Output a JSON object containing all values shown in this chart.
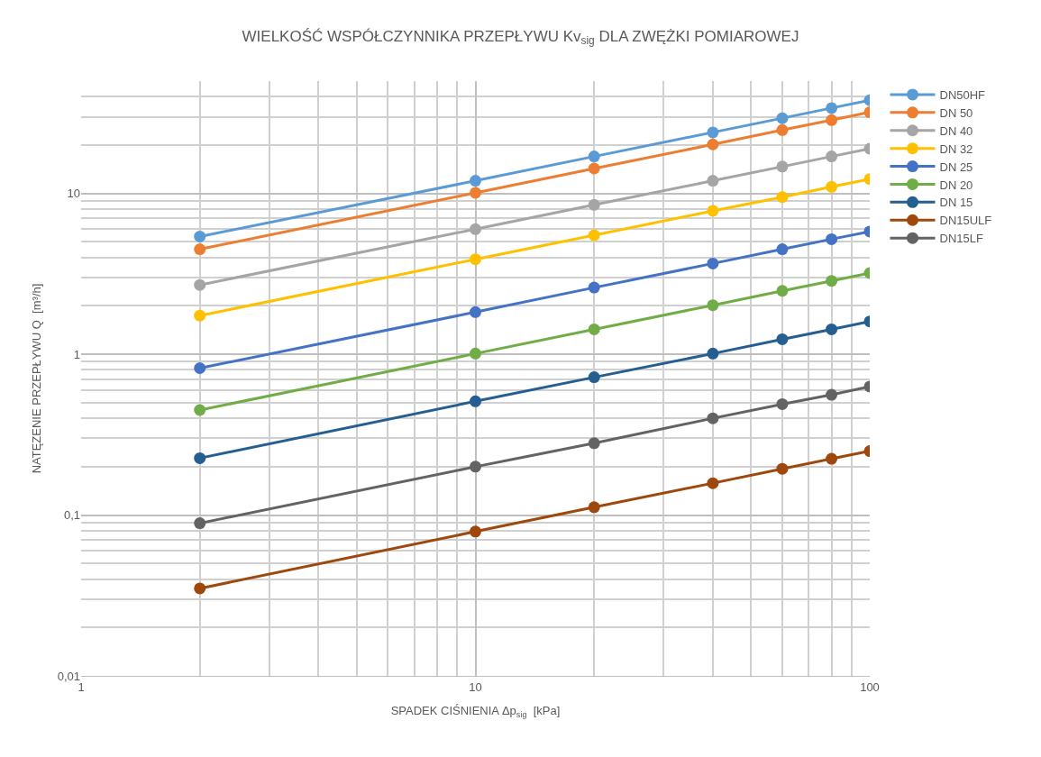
{
  "chart_data": {
    "type": "line",
    "title": "WIELKOŚĆ WSPÓŁCZYNNIKA PRZEPŁYWU Kv$_{sig}$ DLA ZWĘŻKI POMIAROWEJ",
    "xlabel": "SPADEK CIŚNIENIA Δp$_{sig}$  [kPa]",
    "ylabel": "NATĘZENIE PRZEPŁYWU Q  [m³/h]",
    "x": [
      2,
      10,
      20,
      40,
      60,
      80,
      100
    ],
    "series": [
      {
        "name": "DN50HF",
        "color": "#5b9bd5",
        "values": [
          5.4,
          12,
          17,
          24,
          29.4,
          34,
          38
        ]
      },
      {
        "name": "DN 50",
        "color": "#ed7d31",
        "values": [
          4.5,
          10.1,
          14.3,
          20.2,
          24.8,
          28.6,
          32
        ]
      },
      {
        "name": "DN 40",
        "color": "#a5a5a5",
        "values": [
          2.7,
          6.0,
          8.5,
          12,
          14.7,
          17,
          19
        ]
      },
      {
        "name": "DN 32",
        "color": "#ffc000",
        "values": [
          1.74,
          3.9,
          5.5,
          7.8,
          9.5,
          11,
          12.3
        ]
      },
      {
        "name": "DN 25",
        "color": "#4472c4",
        "values": [
          0.82,
          1.83,
          2.6,
          3.67,
          4.5,
          5.2,
          5.8
        ]
      },
      {
        "name": "DN 20",
        "color": "#70ad47",
        "values": [
          0.45,
          1.01,
          1.43,
          2.02,
          2.48,
          2.86,
          3.2
        ]
      },
      {
        "name": "DN 15",
        "color": "#255e91",
        "values": [
          0.226,
          0.51,
          0.72,
          1.01,
          1.24,
          1.43,
          1.6
        ]
      },
      {
        "name": "DN15ULF",
        "color": "#9e480e",
        "values": [
          0.035,
          0.079,
          0.112,
          0.158,
          0.194,
          0.224,
          0.25
        ]
      },
      {
        "name": "DN15LF",
        "color": "#636363",
        "values": [
          0.089,
          0.2,
          0.28,
          0.4,
          0.49,
          0.56,
          0.63
        ]
      }
    ],
    "log": "xy",
    "xlim": [
      1,
      100
    ],
    "xticks": [
      1,
      10,
      100
    ],
    "ylim": [
      0.01,
      50
    ],
    "yticks": [
      {
        "value": 0.01,
        "label": "0,01"
      },
      {
        "value": 0.1,
        "label": "0,1"
      },
      {
        "value": 1,
        "label": "1"
      },
      {
        "value": 10,
        "label": "10"
      }
    ],
    "grid": true,
    "legend": "right",
    "marker": "circle",
    "line_style": "solid"
  }
}
